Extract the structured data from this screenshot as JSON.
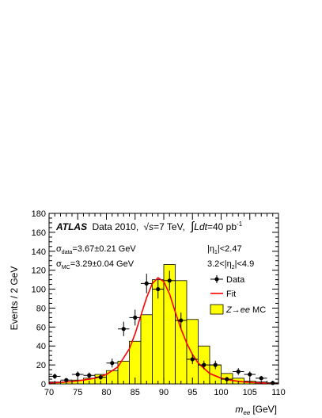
{
  "chart_data": {
    "type": "bar",
    "xlabel": "m_ee [GeV]",
    "xlabel_main": "m",
    "xlabel_sub": "ee",
    "xlabel_unit": "[GeV]",
    "ylabel": "Events / 2 GeV",
    "xlim": [
      70,
      110
    ],
    "ylim": [
      0,
      180
    ],
    "x_ticks": [
      "70",
      "75",
      "80",
      "85",
      "90",
      "95",
      "100",
      "105",
      "110"
    ],
    "y_ticks": [
      "0",
      "20",
      "40",
      "60",
      "80",
      "100",
      "120",
      "140",
      "160",
      "180"
    ],
    "bin_width": 2,
    "bin_edges_start": 70,
    "series": [
      {
        "name": "Z→ee MC",
        "kind": "histogram",
        "color": "#ffff00",
        "values": [
          2,
          2,
          4,
          6,
          10,
          14,
          24,
          45,
          73,
          110,
          126,
          109,
          68,
          40,
          20,
          11,
          6,
          3,
          2,
          1
        ]
      },
      {
        "name": "Data",
        "kind": "points",
        "color": "#000000",
        "x": [
          71,
          73,
          75,
          77,
          79,
          81,
          83,
          85,
          87,
          89,
          91,
          93,
          95,
          97,
          99,
          101,
          103,
          105,
          107,
          109
        ],
        "values": [
          8,
          4,
          10,
          9,
          7,
          22,
          58,
          70,
          106,
          100,
          109,
          67,
          26,
          20,
          20,
          5,
          13,
          10,
          6,
          1
        ]
      },
      {
        "name": "Fit",
        "kind": "curve",
        "color": "#ff0000",
        "x": [
          70,
          72,
          74,
          76,
          78,
          80,
          82,
          84,
          85,
          86,
          87,
          88,
          89,
          90,
          91,
          92,
          93,
          94,
          95,
          96,
          98,
          100,
          102,
          104,
          106,
          108,
          110
        ],
        "values": [
          1,
          1.5,
          2.5,
          4,
          6,
          10,
          18,
          37,
          53,
          72,
          91,
          106,
          112,
          108,
          95,
          76,
          58,
          43,
          31,
          22,
          11,
          6,
          3.5,
          2,
          1.2,
          0.8,
          0.5
        ]
      }
    ]
  },
  "header": {
    "atlas": "ATLAS",
    "data_label": "Data 2010,",
    "sqrt": "√",
    "s": "s",
    "energy": "=7 TeV,",
    "integral": "∫",
    "L": "L",
    "dt": "dt",
    "lumi_value": "=40 pb",
    "lumi_exp": "-1"
  },
  "resolution": {
    "sigma": "σ",
    "data_sub": "data",
    "data_value": "=3.67±0.21 GeV",
    "mc_sub": "MC",
    "mc_value": "=3.29±0.04 GeV"
  },
  "cuts": {
    "cut1": "|η",
    "cut1_sub": "1",
    "cut1_tail": "|<2.47",
    "cut2_head": "3.2<|η",
    "cut2_sub": "2",
    "cut2_tail": "|<4.9"
  },
  "legend": {
    "data_label": "Data",
    "fit_label": "Fit",
    "mc_Z": "Z",
    "mc_arrow": "→",
    "mc_ee": "ee",
    "mc_tail": " MC"
  },
  "colors": {
    "mc_fill": "#ffff00",
    "fit": "#ff0000",
    "data": "#000000"
  }
}
